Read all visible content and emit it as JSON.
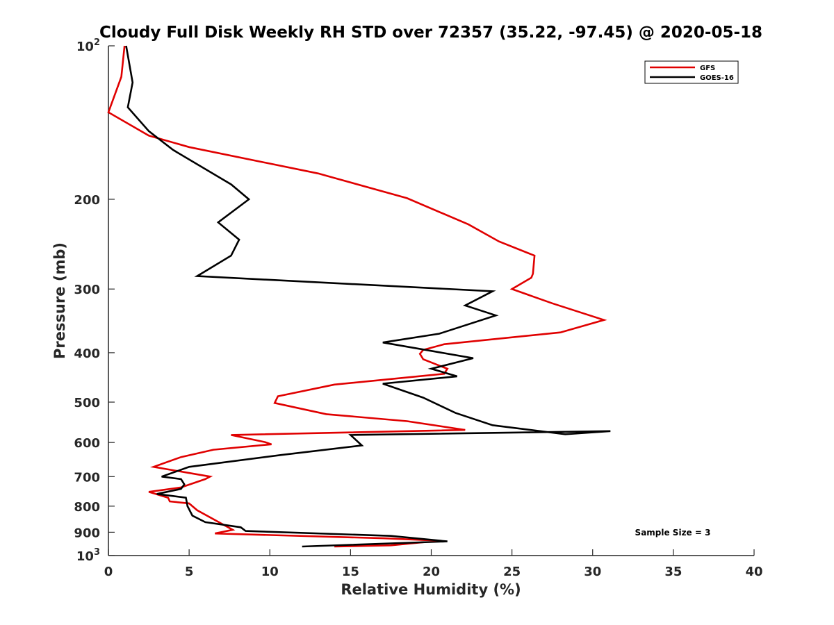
{
  "chart_data": {
    "type": "line",
    "title": "Cloudy Full Disk Weekly RH STD over 72357 (35.22, -97.45) @ 2020-05-18",
    "xlabel": "Relative Humidity (%)",
    "ylabel": "Pressure (mb)",
    "xlim": [
      0,
      40
    ],
    "ylim": [
      100,
      1000
    ],
    "y_scale": "log",
    "y_reversed": true,
    "grid": false,
    "legend_position": "top-right",
    "x_ticks": [
      "0",
      "5",
      "10",
      "15",
      "20",
      "25",
      "30",
      "35",
      "40"
    ],
    "y_ticks": [
      {
        "value": 100,
        "base": "10",
        "exp": "2"
      },
      {
        "value": 200,
        "label": "200"
      },
      {
        "value": 300,
        "label": "300"
      },
      {
        "value": 400,
        "label": "400"
      },
      {
        "value": 500,
        "label": "500"
      },
      {
        "value": 600,
        "label": "600"
      },
      {
        "value": 700,
        "label": "700"
      },
      {
        "value": 800,
        "label": "800"
      },
      {
        "value": 900,
        "label": "900"
      },
      {
        "value": 1000,
        "base": "10",
        "exp": "3"
      }
    ],
    "annotation": "Sample Size = 3",
    "series": [
      {
        "name": "GFS",
        "color": "#e00000",
        "points": [
          [
            1.0,
            100
          ],
          [
            0.8,
            115
          ],
          [
            0.0,
            135
          ],
          [
            2.5,
            150
          ],
          [
            5.0,
            158
          ],
          [
            13.0,
            178
          ],
          [
            18.5,
            199
          ],
          [
            22.3,
            224
          ],
          [
            24.2,
            242
          ],
          [
            26.4,
            258
          ],
          [
            26.3,
            280
          ],
          [
            26.2,
            285
          ],
          [
            25.0,
            300
          ],
          [
            27.5,
            320
          ],
          [
            30.7,
            345
          ],
          [
            28.0,
            365
          ],
          [
            20.8,
            385
          ],
          [
            19.5,
            395
          ],
          [
            19.3,
            402
          ],
          [
            19.5,
            412
          ],
          [
            21.0,
            430
          ],
          [
            20.8,
            440
          ],
          [
            14.0,
            462
          ],
          [
            10.5,
            487
          ],
          [
            10.3,
            502
          ],
          [
            13.5,
            528
          ],
          [
            18.5,
            545
          ],
          [
            22.1,
            567
          ],
          [
            7.6,
            580
          ],
          [
            9.7,
            599
          ],
          [
            10.1,
            605
          ],
          [
            6.5,
            620
          ],
          [
            4.5,
            641
          ],
          [
            2.8,
            670
          ],
          [
            4.0,
            680
          ],
          [
            6.3,
            700
          ],
          [
            6.0,
            708
          ],
          [
            4.5,
            735
          ],
          [
            2.5,
            750
          ],
          [
            3.7,
            770
          ],
          [
            3.8,
            783
          ],
          [
            5.0,
            790
          ],
          [
            5.5,
            815
          ],
          [
            7.7,
            890
          ],
          [
            6.6,
            905
          ],
          [
            17.0,
            925
          ],
          [
            20.5,
            935
          ],
          [
            17.5,
            955
          ],
          [
            14.0,
            960
          ]
        ]
      },
      {
        "name": "GOES-16",
        "color": "#000000",
        "points": [
          [
            1.1,
            100
          ],
          [
            1.5,
            118
          ],
          [
            1.2,
            132
          ],
          [
            2.5,
            147
          ],
          [
            4.0,
            160
          ],
          [
            7.6,
            187
          ],
          [
            8.7,
            200
          ],
          [
            6.8,
            222
          ],
          [
            8.1,
            240
          ],
          [
            7.6,
            258
          ],
          [
            5.5,
            283
          ],
          [
            23.8,
            303
          ],
          [
            22.1,
            323
          ],
          [
            24.0,
            338
          ],
          [
            20.5,
            367
          ],
          [
            17.0,
            382
          ],
          [
            22.6,
            410
          ],
          [
            20.0,
            430
          ],
          [
            21.6,
            445
          ],
          [
            17.0,
            460
          ],
          [
            19.5,
            490
          ],
          [
            21.5,
            525
          ],
          [
            23.8,
            555
          ],
          [
            28.3,
            578
          ],
          [
            31.1,
            570
          ],
          [
            15.0,
            580
          ],
          [
            15.7,
            608
          ],
          [
            10.7,
            635
          ],
          [
            5.0,
            670
          ],
          [
            3.3,
            700
          ],
          [
            4.5,
            708
          ],
          [
            4.7,
            725
          ],
          [
            4.5,
            740
          ],
          [
            3.0,
            757
          ],
          [
            4.8,
            770
          ],
          [
            4.9,
            800
          ],
          [
            5.2,
            835
          ],
          [
            6.0,
            860
          ],
          [
            8.2,
            880
          ],
          [
            8.5,
            895
          ],
          [
            17.5,
            915
          ],
          [
            21.0,
            938
          ],
          [
            12.0,
            960
          ]
        ]
      }
    ]
  }
}
